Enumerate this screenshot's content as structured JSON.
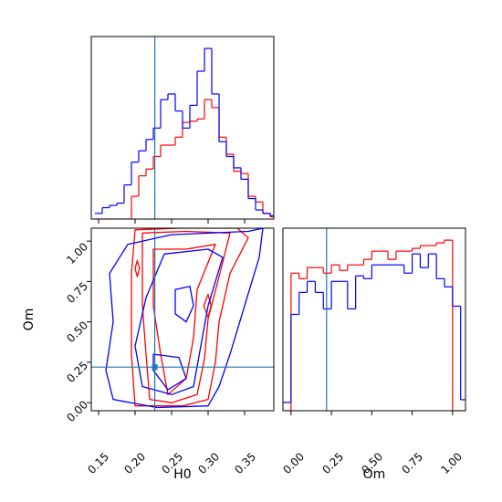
{
  "colors": {
    "series_a": "#ff0000",
    "series_b": "#0000ff",
    "truth": "#1f77b4",
    "frame": "#000000"
  },
  "chart_data": {
    "type": "corner",
    "parameters": [
      "H0",
      "Om"
    ],
    "truth": {
      "H0": 0.227,
      "Om": 0.22
    },
    "axes": {
      "H0": {
        "label": "H0",
        "range": [
          0.14,
          0.39
        ],
        "ticks": [
          "0.15",
          "0.20",
          "0.25",
          "0.30",
          "0.35"
        ],
        "tick_values": [
          0.15,
          0.2,
          0.25,
          0.3,
          0.35
        ]
      },
      "Om": {
        "label": "Om",
        "range": [
          -0.05,
          1.08
        ],
        "ticks": [
          "0.00",
          "0.25",
          "0.50",
          "0.75",
          "1.00"
        ],
        "tick_values": [
          0,
          0.25,
          0.5,
          0.75,
          1.0
        ]
      }
    },
    "grid": false,
    "hist_H0": {
      "bin_edges": [
        0.145,
        0.155,
        0.165,
        0.175,
        0.185,
        0.195,
        0.205,
        0.215,
        0.225,
        0.235,
        0.245,
        0.255,
        0.265,
        0.275,
        0.285,
        0.295,
        0.305,
        0.315,
        0.325,
        0.335,
        0.345,
        0.355,
        0.365,
        0.375,
        0.385,
        0.39
      ],
      "series": [
        {
          "color": "red",
          "values": [
            0,
            0,
            0,
            0,
            0,
            20,
            38,
            44,
            55,
            65,
            65,
            72,
            85,
            86,
            88,
            105,
            98,
            72,
            57,
            42,
            40,
            20,
            15,
            5,
            2
          ]
        },
        {
          "color": "blue",
          "values": [
            5,
            10,
            12,
            14,
            30,
            50,
            60,
            70,
            80,
            105,
            110,
            95,
            80,
            100,
            130,
            150,
            110,
            68,
            55,
            45,
            35,
            18,
            8,
            5,
            3
          ]
        }
      ]
    },
    "hist_Om": {
      "bin_edges": [
        -0.07,
        0.0,
        0.05,
        0.1,
        0.15,
        0.2,
        0.25,
        0.3,
        0.35,
        0.4,
        0.45,
        0.5,
        0.55,
        0.6,
        0.65,
        0.7,
        0.75,
        0.8,
        0.85,
        0.9,
        0.95,
        1.0,
        1.05,
        1.08
      ],
      "series": [
        {
          "color": "red",
          "values": [
            0,
            50,
            48,
            52,
            52,
            50,
            53,
            51,
            53,
            53,
            55,
            58,
            58,
            55,
            58,
            58,
            59,
            60,
            60,
            61,
            62,
            0,
            0
          ]
        },
        {
          "color": "blue",
          "values": [
            3,
            35,
            43,
            47,
            43,
            37,
            47,
            47,
            37,
            49,
            48,
            53,
            53,
            53,
            53,
            50,
            57,
            52,
            57,
            48,
            45,
            38,
            4
          ]
        }
      ]
    },
    "contours_2d": {
      "series": [
        {
          "color": "red",
          "levels": [
            [
              [
                0.2,
                1.07
              ],
              [
                0.26,
                1.08
              ],
              [
                0.34,
                1.08
              ],
              [
                0.355,
                1.02
              ],
              [
                0.33,
                0.8
              ],
              [
                0.315,
                0.5
              ],
              [
                0.31,
                0.25
              ],
              [
                0.3,
                0.02
              ],
              [
                0.265,
                -0.02
              ],
              [
                0.2,
                -0.02
              ],
              [
                0.195,
                0.3
              ],
              [
                0.195,
                0.5
              ],
              [
                0.195,
                0.8
              ],
              [
                0.2,
                1.07
              ]
            ],
            [
              [
                0.21,
                1.05
              ],
              [
                0.27,
                1.06
              ],
              [
                0.33,
                1.05
              ],
              [
                0.315,
                0.78
              ],
              [
                0.3,
                0.52
              ],
              [
                0.295,
                0.27
              ],
              [
                0.285,
                0.05
              ],
              [
                0.25,
                0.0
              ],
              [
                0.22,
                0.02
              ],
              [
                0.215,
                0.3
              ],
              [
                0.21,
                0.6
              ],
              [
                0.21,
                1.05
              ]
            ],
            [
              [
                0.225,
                0.95
              ],
              [
                0.27,
                0.95
              ],
              [
                0.31,
                0.98
              ],
              [
                0.285,
                0.7
              ],
              [
                0.28,
                0.4
              ],
              [
                0.27,
                0.15
              ],
              [
                0.245,
                0.05
              ],
              [
                0.235,
                0.3
              ],
              [
                0.225,
                0.6
              ],
              [
                0.225,
                0.95
              ]
            ],
            [
              [
                0.294,
                0.6
              ],
              [
                0.3,
                0.67
              ],
              [
                0.304,
                0.6
              ],
              [
                0.3,
                0.53
              ],
              [
                0.294,
                0.6
              ]
            ],
            [
              [
                0.2,
                0.83
              ],
              [
                0.203,
                0.88
              ],
              [
                0.206,
                0.83
              ],
              [
                0.203,
                0.78
              ],
              [
                0.2,
                0.83
              ]
            ]
          ]
        },
        {
          "color": "blue",
          "levels": [
            [
              [
                0.25,
                1.04
              ],
              [
                0.355,
                1.06
              ],
              [
                0.375,
                1.08
              ],
              [
                0.37,
                0.9
              ],
              [
                0.35,
                0.6
              ],
              [
                0.33,
                0.3
              ],
              [
                0.315,
                0.1
              ],
              [
                0.3,
                -0.02
              ],
              [
                0.23,
                -0.03
              ],
              [
                0.17,
                0.02
              ],
              [
                0.16,
                0.2
              ],
              [
                0.17,
                0.5
              ],
              [
                0.165,
                0.8
              ],
              [
                0.19,
                0.98
              ],
              [
                0.25,
                1.04
              ]
            ],
            [
              [
                0.24,
                0.92
              ],
              [
                0.3,
                0.95
              ],
              [
                0.32,
                0.9
              ],
              [
                0.3,
                0.6
              ],
              [
                0.29,
                0.35
              ],
              [
                0.28,
                0.1
              ],
              [
                0.25,
                0.05
              ],
              [
                0.21,
                0.1
              ],
              [
                0.2,
                0.35
              ],
              [
                0.215,
                0.65
              ],
              [
                0.24,
                0.92
              ]
            ],
            [
              [
                0.255,
                0.7
              ],
              [
                0.275,
                0.72
              ],
              [
                0.28,
                0.6
              ],
              [
                0.27,
                0.5
              ],
              [
                0.255,
                0.55
              ],
              [
                0.255,
                0.7
              ]
            ],
            [
              [
                0.225,
                0.3
              ],
              [
                0.26,
                0.28
              ],
              [
                0.27,
                0.15
              ],
              [
                0.245,
                0.08
              ],
              [
                0.225,
                0.2
              ],
              [
                0.225,
                0.3
              ]
            ]
          ]
        }
      ]
    }
  }
}
